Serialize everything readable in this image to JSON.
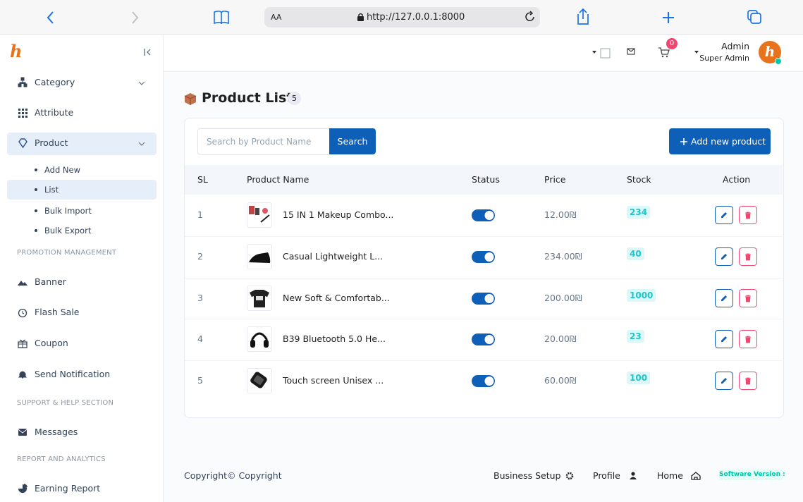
{
  "browser": {
    "text_size": "AA",
    "url": "http://127.0.0.1:8000"
  },
  "sidebar": {
    "logo": "h",
    "menu": [
      {
        "label": "Category"
      },
      {
        "label": "Attribute"
      },
      {
        "label": "Product",
        "sub": [
          "Add New",
          "List",
          "Bulk Import",
          "Bulk Export"
        ]
      }
    ],
    "sections": [
      {
        "heading": "PROMOTION MANAGEMENT",
        "items": [
          "Banner",
          "Flash Sale",
          "Coupon",
          "Send Notification"
        ]
      },
      {
        "heading": "SUPPORT & HELP SECTION",
        "items": [
          "Messages"
        ]
      },
      {
        "heading": "REPORT AND ANALYTICS",
        "items": [
          "Earning Report"
        ]
      }
    ]
  },
  "topbar": {
    "cart_count": 0,
    "user_name": "Admin",
    "user_role": "Super Admin",
    "avatar": "h"
  },
  "content": {
    "title": "Product List",
    "count": 5,
    "search_placeholder": "Search by Product Name",
    "search_button": "Search",
    "add_button": "Add new product"
  },
  "table": {
    "headers": [
      "SL",
      "Product Name",
      "Status",
      "Price",
      "Stock",
      "Action"
    ],
    "rows": [
      [
        1,
        "15 IN 1 Makeup Combo...",
        "12.00₪",
        234
      ],
      [
        2,
        "Casual Lightweight L...",
        "234.00₪",
        40
      ],
      [
        3,
        "New Soft & Comfortab...",
        "200.00₪",
        1000
      ],
      [
        4,
        "B39 Bluetooth 5.0 He...",
        "20.00₪",
        23
      ],
      [
        5,
        "Touch screen Unisex ...",
        "60.00₪",
        100
      ]
    ]
  },
  "footer": {
    "copyright": "Copyright© Copyright",
    "links": [
      "Business Setup",
      "Profile",
      "Home"
    ],
    "version": "Software Version :"
  }
}
